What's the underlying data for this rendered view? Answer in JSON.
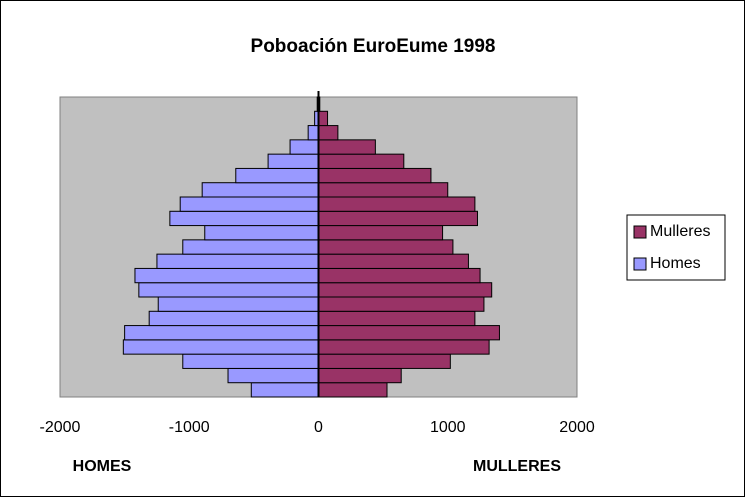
{
  "chart_data": {
    "type": "pyramid",
    "title": "Poboación  EuroEume 1998",
    "categories": [
      null,
      null,
      null,
      null,
      null,
      null,
      null,
      null,
      null,
      null,
      null,
      null,
      null,
      null,
      null,
      null,
      null,
      null,
      null,
      null,
      null
    ],
    "series": [
      {
        "name": "Mulleres",
        "color": "#993366",
        "values": [
          530,
          640,
          1020,
          1320,
          1400,
          1210,
          1280,
          1340,
          1250,
          1160,
          1040,
          960,
          1230,
          1210,
          1000,
          870,
          660,
          440,
          150,
          70,
          10
        ]
      },
      {
        "name": "Homes",
        "color": "#9999ff",
        "values": [
          -520,
          -700,
          -1050,
          -1510,
          -1500,
          -1310,
          -1240,
          -1390,
          -1420,
          -1250,
          -1050,
          -880,
          -1150,
          -1070,
          -900,
          -640,
          -390,
          -220,
          -80,
          -30,
          -10
        ]
      }
    ],
    "xlim": [
      -2000,
      2000
    ],
    "xticks": [
      -2000,
      -1000,
      0,
      1000,
      2000
    ],
    "annotations": [
      "HOMES",
      "MULLERES"
    ],
    "plot_background": "#c0c0c0",
    "legend": "right"
  }
}
